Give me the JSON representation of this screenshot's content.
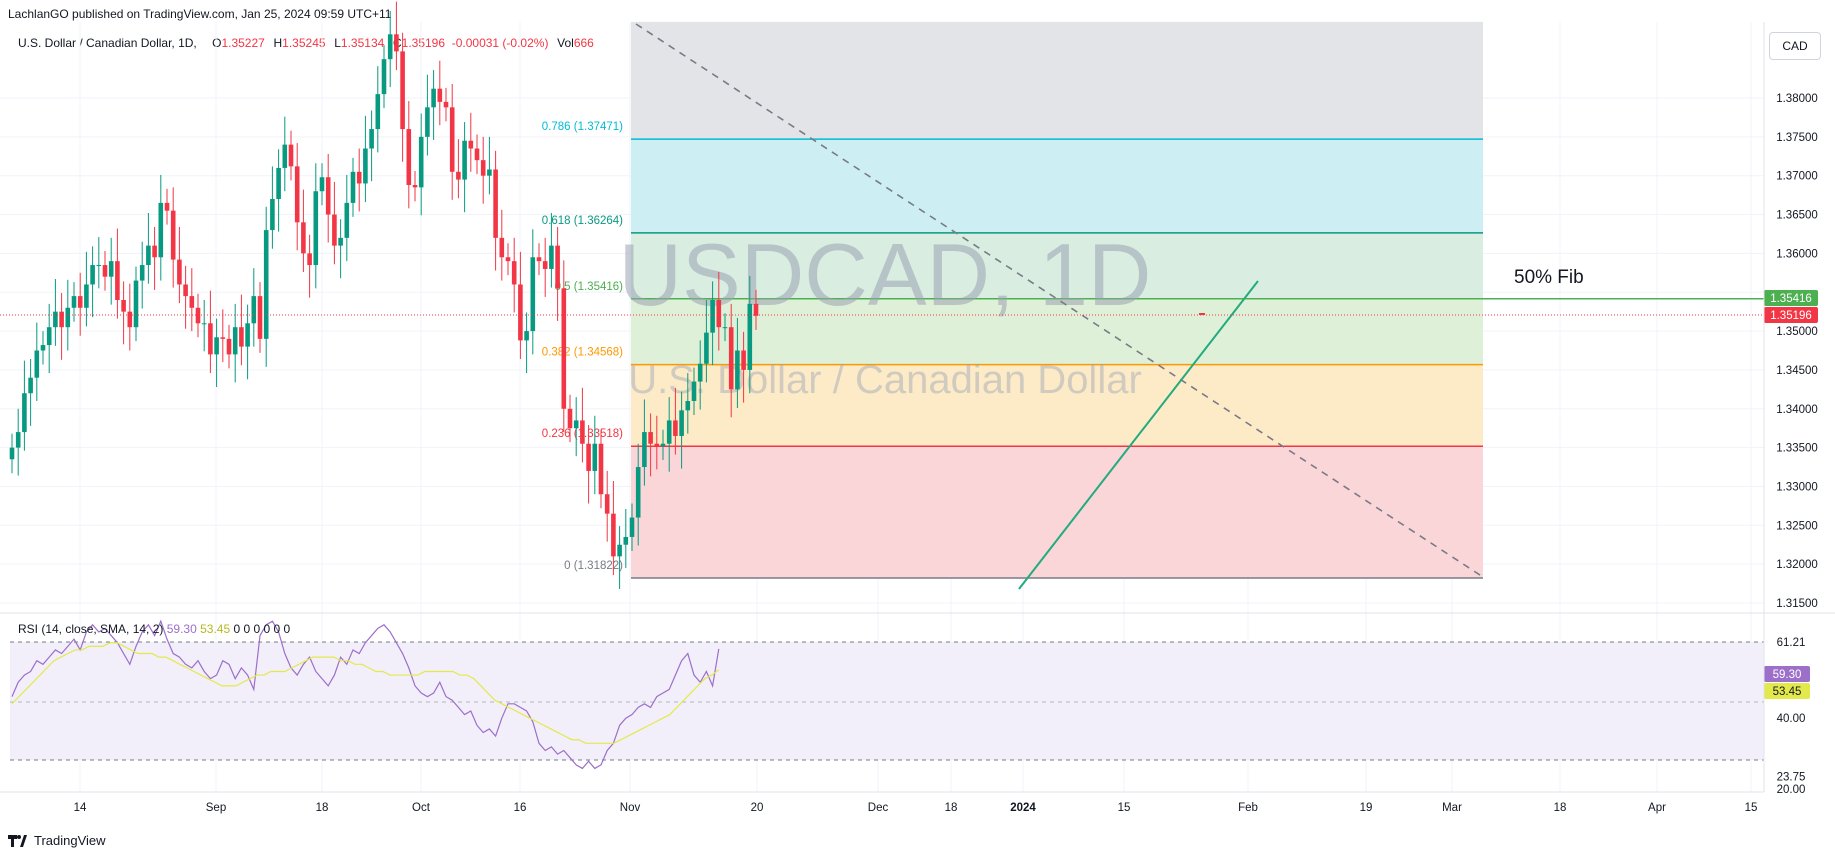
{
  "header": {
    "publisher": "LachlanGO published on TradingView.com, Jan 25, 2024 09:59 UTC+11"
  },
  "legend": {
    "symbol": "U.S. Dollar / Canadian Dollar, 1D,",
    "open_label": "O",
    "open": "1.35227",
    "high_label": "H",
    "high": "1.35245",
    "low_label": "L",
    "low": "1.35134",
    "close_label": "C",
    "close": "1.35196",
    "change": "-0.00031 (-0.02%)",
    "vol_label": "Vol",
    "vol": "666"
  },
  "rsi_legend": {
    "label": "RSI (14, close, SMA, 14, 2)",
    "rsi": "59.30",
    "sma": "53.45",
    "zeros": "0 0 0 0 0 0"
  },
  "currency": "CAD",
  "footer": {
    "brand": "TradingView"
  },
  "watermark": {
    "symbol": "USDCAD, 1D",
    "name": "U.S. Dollar / Canadian Dollar"
  },
  "annotation": {
    "text": "50% Fib"
  },
  "price_badges": {
    "fib50": "1.35416",
    "last": "1.35196"
  },
  "rsi_badges": {
    "rsi": "59.30",
    "sma": "53.45"
  },
  "colors": {
    "up": "#089981",
    "down": "#f23645",
    "rsi_line": "#9c6fc9",
    "rsi_sma": "#e3e94a",
    "trend": "#22ab7e",
    "fib_green": "#4caf50"
  },
  "chart_data": [
    {
      "type": "candlestick",
      "title": "USDCAD, 1D",
      "y_range": [
        1.3145,
        1.3898
      ],
      "y_ticks": [
        "1.31500",
        "1.32000",
        "1.32500",
        "1.33000",
        "1.33500",
        "1.34000",
        "1.34500",
        "1.35000",
        "1.35500",
        "1.36000",
        "1.36500",
        "1.37000",
        "1.37500",
        "1.38000"
      ],
      "x_ticks": [
        "14",
        "Sep",
        "18",
        "Oct",
        "16",
        "Nov",
        "20",
        "Dec",
        "18",
        "2024",
        "15",
        "Feb",
        "19",
        "Mar",
        "18",
        "Apr",
        "15"
      ],
      "close_series": [
        1.335,
        1.337,
        1.342,
        1.344,
        1.3475,
        1.3482,
        1.3505,
        1.3525,
        1.3505,
        1.353,
        1.3545,
        1.353,
        1.356,
        1.3585,
        1.3585,
        1.357,
        1.359,
        1.354,
        1.3525,
        1.3505,
        1.3565,
        1.3585,
        1.361,
        1.3595,
        1.3665,
        1.3655,
        1.3592,
        1.356,
        1.3545,
        1.353,
        1.351,
        1.351,
        1.347,
        1.3492,
        1.349,
        1.347,
        1.3505,
        1.348,
        1.351,
        1.3545,
        1.349,
        1.363,
        1.367,
        1.371,
        1.374,
        1.3712,
        1.364,
        1.36,
        1.3585,
        1.368,
        1.3698,
        1.365,
        1.361,
        1.362,
        1.3665,
        1.3705,
        1.369,
        1.3735,
        1.376,
        1.3805,
        1.385,
        1.3882,
        1.386,
        1.376,
        1.3688,
        1.3685,
        1.375,
        1.3788,
        1.3812,
        1.3795,
        1.3788,
        1.3705,
        1.3695,
        1.3745,
        1.3735,
        1.372,
        1.37,
        1.3708,
        1.362,
        1.3595,
        1.359,
        1.356,
        1.3488,
        1.35,
        1.3595,
        1.359,
        1.358,
        1.361,
        1.3555,
        1.34,
        1.3375,
        1.3385,
        1.3355,
        1.332,
        1.3355,
        1.329,
        1.3265,
        1.321,
        1.3225,
        1.3235,
        1.326,
        1.3325,
        1.337,
        1.3355,
        1.3352,
        1.3355,
        1.3385,
        1.3365,
        1.3398,
        1.341,
        1.3435,
        1.3458,
        1.3498,
        1.354,
        1.3505,
        1.3505,
        1.3425,
        1.3475,
        1.345,
        1.3535,
        1.35196
      ],
      "fib_levels": [
        {
          "ratio": "0",
          "price": 1.31822,
          "label": "0 (1.31822)"
        },
        {
          "ratio": "0.236",
          "price": 1.33518,
          "label": "0.236 (1.33518)"
        },
        {
          "ratio": "0.382",
          "price": 1.34568,
          "label": "0.382 (1.34568)"
        },
        {
          "ratio": "0.5",
          "price": 1.35416,
          "label": "0.5 (1.35416)"
        },
        {
          "ratio": "0.618",
          "price": 1.36264,
          "label": "0.618 (1.36264)"
        },
        {
          "ratio": "0.786",
          "price": 1.37471,
          "label": "0.786 (1.37471)"
        }
      ],
      "trendlines": [
        "descending dashed from Nov high to Mar",
        "ascending green from late-Dec low"
      ]
    },
    {
      "type": "line",
      "title": "RSI (14, close, SMA, 14, 2)",
      "y_range": [
        20,
        68
      ],
      "y_ticks": [
        "20.00",
        "23.75",
        "40.00",
        "61.21"
      ],
      "rsi": [
        46,
        50,
        52,
        53,
        56,
        55,
        57,
        59,
        58,
        60,
        62,
        59,
        64,
        66,
        64,
        65,
        63,
        61,
        58,
        55,
        60,
        64,
        66,
        63,
        67,
        62,
        58,
        57,
        55,
        54,
        56,
        53,
        51,
        52,
        56,
        55,
        51,
        54,
        52,
        48,
        63,
        66,
        67,
        64,
        58,
        54,
        52,
        55,
        57,
        53,
        51,
        49,
        52,
        57,
        55,
        59,
        58,
        61,
        63,
        65,
        66,
        64,
        61,
        58,
        54,
        49,
        47,
        46,
        47,
        50,
        46,
        45,
        43,
        41,
        42,
        38,
        36,
        37,
        35,
        40,
        44,
        44,
        43,
        42,
        39,
        33,
        31,
        32,
        30,
        31,
        29,
        27,
        26,
        28,
        26,
        27,
        31,
        33,
        38,
        40,
        41,
        43,
        44,
        43,
        46,
        47,
        48,
        52,
        56,
        58,
        52,
        50,
        53,
        49,
        59.3
      ],
      "sma": [
        44,
        46,
        48,
        50,
        52,
        54,
        56,
        57,
        58,
        59,
        59,
        60,
        60,
        60,
        61,
        61,
        60,
        59,
        58,
        58,
        58,
        57,
        57,
        56,
        55,
        54,
        53,
        52,
        51,
        50,
        49,
        49,
        49,
        50,
        51,
        52,
        52,
        53,
        53,
        53,
        54,
        55,
        56,
        57,
        57,
        57,
        57,
        56,
        56,
        55,
        55,
        54,
        53,
        53,
        52,
        52,
        52,
        52,
        52,
        53,
        53,
        53,
        53,
        53,
        52,
        52,
        51,
        49,
        47,
        45,
        44,
        43,
        42,
        41,
        40,
        39,
        38,
        37,
        36,
        35,
        34,
        34,
        33,
        33,
        33,
        33,
        33,
        34,
        35,
        36,
        37,
        38,
        39,
        40,
        41,
        43,
        45,
        47,
        49,
        51,
        52,
        53.45
      ]
    }
  ]
}
